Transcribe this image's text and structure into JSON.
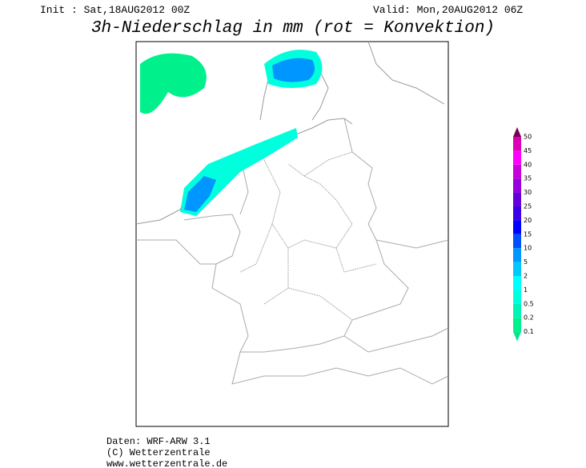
{
  "header": {
    "init": "Init : Sat,18AUG2012 00Z",
    "valid": "Valid: Mon,20AUG2012 06Z",
    "title": "3h-Niederschlag in mm (rot = Konvektion)"
  },
  "colorbar": {
    "labels": [
      50,
      45,
      40,
      35,
      30,
      25,
      20,
      15,
      10,
      5,
      2,
      1,
      0.5,
      0.2,
      0.1
    ]
  },
  "footer": {
    "lines": [
      "Daten: WRF-ARW 3.1",
      "(C) Wetterzentrale",
      "www.wetterzentrale.de"
    ]
  }
}
